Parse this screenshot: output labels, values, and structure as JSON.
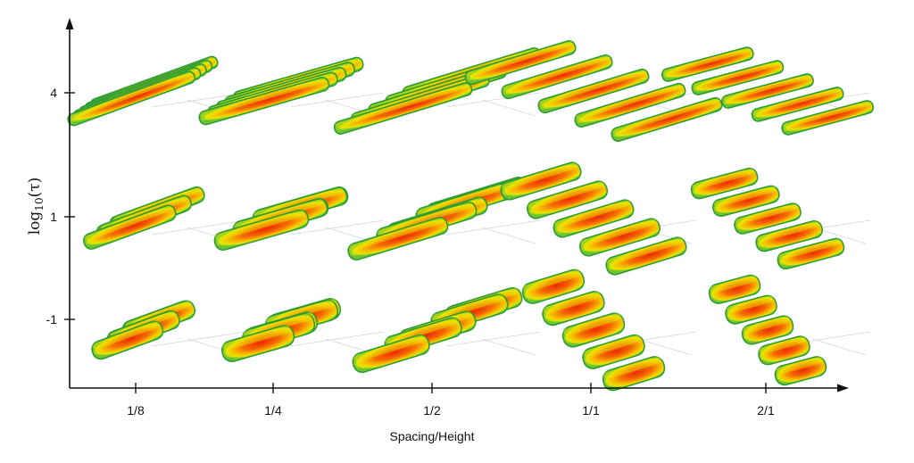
{
  "figure": {
    "x_axis_title": "Spacing/Height",
    "y_axis_title": {
      "main": "log",
      "subscript": "10",
      "argument": "(τ)"
    },
    "x_ticks": [
      "1/8",
      "1/4",
      "1/2",
      "1/1",
      "2/1"
    ],
    "y_ticks": [
      "4",
      "1",
      "-1"
    ],
    "colors": {
      "axis": "#111111",
      "blob_core": "#ee2a00",
      "blob_mid": "#f59a00",
      "blob_outer": "#e8e400",
      "blob_edge": "#2e9c34",
      "blob_deep_edge": "#1d66a8",
      "floor_lines": "#d6d6d6"
    },
    "grid": {
      "rows": [
        "4",
        "1",
        "-1"
      ],
      "columns": [
        "1/8",
        "1/4",
        "1/2",
        "1/1",
        "2/1"
      ]
    }
  }
}
